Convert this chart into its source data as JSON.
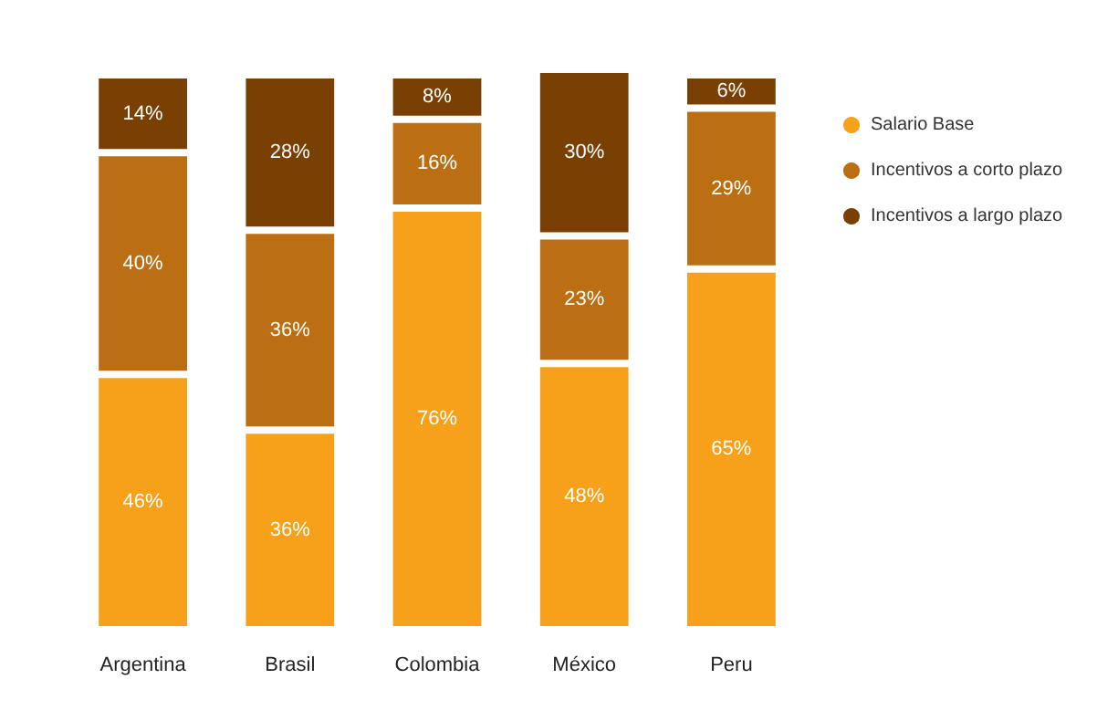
{
  "chart_data": {
    "type": "bar",
    "stacked": true,
    "legend": "top right",
    "categories": [
      "Argentina",
      "Brasil",
      "Colombia",
      "México",
      "Peru"
    ],
    "series": [
      {
        "name": "Salario Base",
        "color": "#f7a11a",
        "values": [
          46,
          36,
          76,
          48,
          65
        ],
        "value_labels": [
          "46%",
          "36%",
          "76%",
          "48%",
          "65%"
        ]
      },
      {
        "name": "Incentivos a corto plazo",
        "color": "#bb6f12",
        "values": [
          40,
          36,
          16,
          23,
          29
        ],
        "value_labels": [
          "40%",
          "36%",
          "16%",
          "23%",
          "29%"
        ]
      },
      {
        "name": "Incentivos a largo plazo",
        "color": "#7a4003",
        "values": [
          14,
          28,
          8,
          30,
          6
        ],
        "value_labels": [
          "14%",
          "28%",
          "8%",
          "30%",
          "6%"
        ]
      }
    ]
  }
}
